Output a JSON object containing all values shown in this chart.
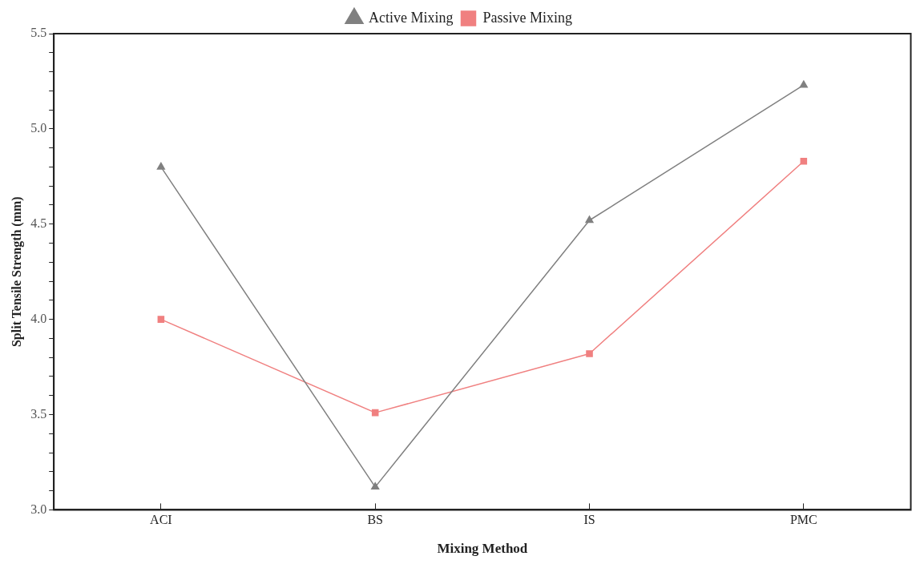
{
  "chart_data": {
    "type": "line",
    "xlabel": "Mixing Method",
    "ylabel": "Split Tensile Strength (mm)",
    "categories": [
      "ACI",
      "BS",
      "IS",
      "PMC"
    ],
    "series": [
      {
        "name": "Active Mixing",
        "color": "#808080",
        "values": [
          4.8,
          3.12,
          4.52,
          5.23
        ],
        "marker": "triangle"
      },
      {
        "name": "Passive Mixing",
        "color": "#f08080",
        "values": [
          4.0,
          3.51,
          3.82,
          4.83
        ],
        "marker": "square"
      }
    ],
    "ylim": [
      3.0,
      5.5
    ],
    "yticks": [
      {
        "value": 3.0,
        "label": "3.0"
      },
      {
        "value": 3.1,
        "label": null
      },
      {
        "value": 3.2,
        "label": null
      },
      {
        "value": 3.3,
        "label": null
      },
      {
        "value": 3.4,
        "label": null
      },
      {
        "value": 3.5,
        "label": "3.5"
      },
      {
        "value": 3.6,
        "label": null
      },
      {
        "value": 3.7,
        "label": null
      },
      {
        "value": 3.8,
        "label": null
      },
      {
        "value": 3.9,
        "label": null
      },
      {
        "value": 4.0,
        "label": "4.0"
      },
      {
        "value": 4.1,
        "label": null
      },
      {
        "value": 4.2,
        "label": null
      },
      {
        "value": 4.3,
        "label": null
      },
      {
        "value": 4.4,
        "label": null
      },
      {
        "value": 4.5,
        "label": "4.5"
      },
      {
        "value": 4.6,
        "label": null
      },
      {
        "value": 4.7,
        "label": null
      },
      {
        "value": 4.8,
        "label": null
      },
      {
        "value": 4.9,
        "label": null
      },
      {
        "value": 5.0,
        "label": "5.0"
      },
      {
        "value": 5.1,
        "label": null
      },
      {
        "value": 5.2,
        "label": null
      },
      {
        "value": 5.3,
        "label": null
      },
      {
        "value": 5.4,
        "label": null
      },
      {
        "value": 5.5,
        "label": "5.5"
      }
    ],
    "grid": false,
    "legend": "top",
    "line_style": "solid"
  }
}
